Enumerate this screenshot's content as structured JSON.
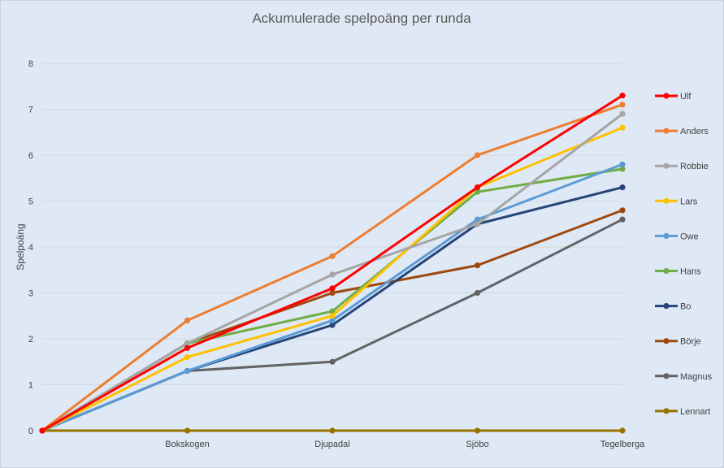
{
  "chart_data": {
    "type": "line",
    "title": "Ackumulerade spelpoäng per runda",
    "ylabel": "Spelpoäng",
    "xlabel": "",
    "ylim": [
      0,
      8
    ],
    "yticks": [
      "0",
      "1",
      "2",
      "3",
      "4",
      "5",
      "6",
      "7",
      "8"
    ],
    "grid": true,
    "legend": "right",
    "categories": [
      "",
      "Bokskogen",
      "Djupadal",
      "Sjöbo",
      "Tegelberga"
    ],
    "series": [
      {
        "name": "Ulf",
        "color": "#ff0000",
        "values": [
          0,
          1.8,
          3.1,
          5.3,
          7.3
        ]
      },
      {
        "name": "Anders",
        "color": "#ed7d31",
        "values": [
          0,
          2.4,
          3.8,
          6.0,
          7.1
        ]
      },
      {
        "name": "Robbie",
        "color": "#a5a5a5",
        "values": [
          0,
          1.9,
          3.4,
          4.5,
          6.9
        ]
      },
      {
        "name": "Lars",
        "color": "#ffc000",
        "values": [
          0,
          1.6,
          2.5,
          5.3,
          6.6
        ]
      },
      {
        "name": "Owe",
        "color": "#5b9bd5",
        "values": [
          0,
          1.3,
          2.4,
          4.6,
          5.8
        ]
      },
      {
        "name": "Hans",
        "color": "#70ad47",
        "values": [
          0,
          1.9,
          2.6,
          5.2,
          5.7
        ]
      },
      {
        "name": "Bo",
        "color": "#264478",
        "values": [
          0,
          1.3,
          2.3,
          4.5,
          5.3
        ]
      },
      {
        "name": "Börje",
        "color": "#9e480e",
        "values": [
          0,
          1.9,
          3.0,
          3.6,
          4.8
        ]
      },
      {
        "name": "Magnus",
        "color": "#636363",
        "values": [
          0,
          1.3,
          1.5,
          3.0,
          4.6
        ]
      },
      {
        "name": "Lennart",
        "color": "#997300",
        "values": [
          0,
          0,
          0,
          0,
          0
        ]
      }
    ]
  }
}
